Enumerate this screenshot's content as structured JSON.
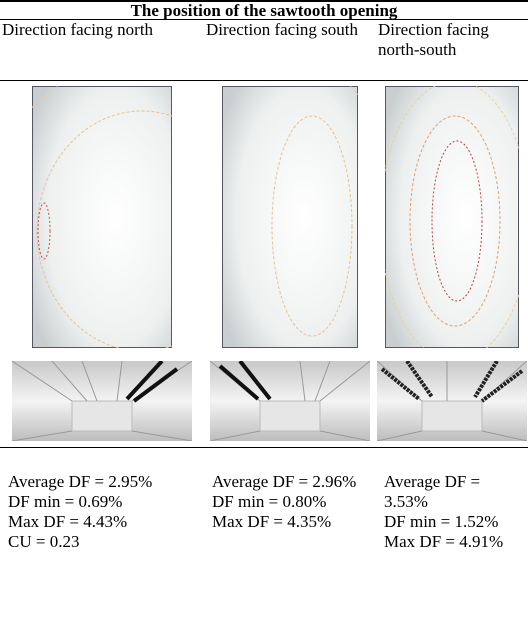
{
  "table": {
    "title": "The position of the sawtooth opening",
    "columns": [
      "Direction facing north",
      "Direction facing south",
      "Direction facing north-south"
    ],
    "stats": [
      [
        "Average DF = 2.95%",
        "DF min = 0.69%",
        "Max DF = 4.43%",
        "CU = 0.23"
      ],
      [
        "Average DF = 2.96%",
        "DF min = 0.80%",
        "Max DF = 4.35%"
      ],
      [
        "Average DF = 3.53%",
        "DF min = 1.52%",
        "Max DF = 4.91%"
      ]
    ]
  }
}
